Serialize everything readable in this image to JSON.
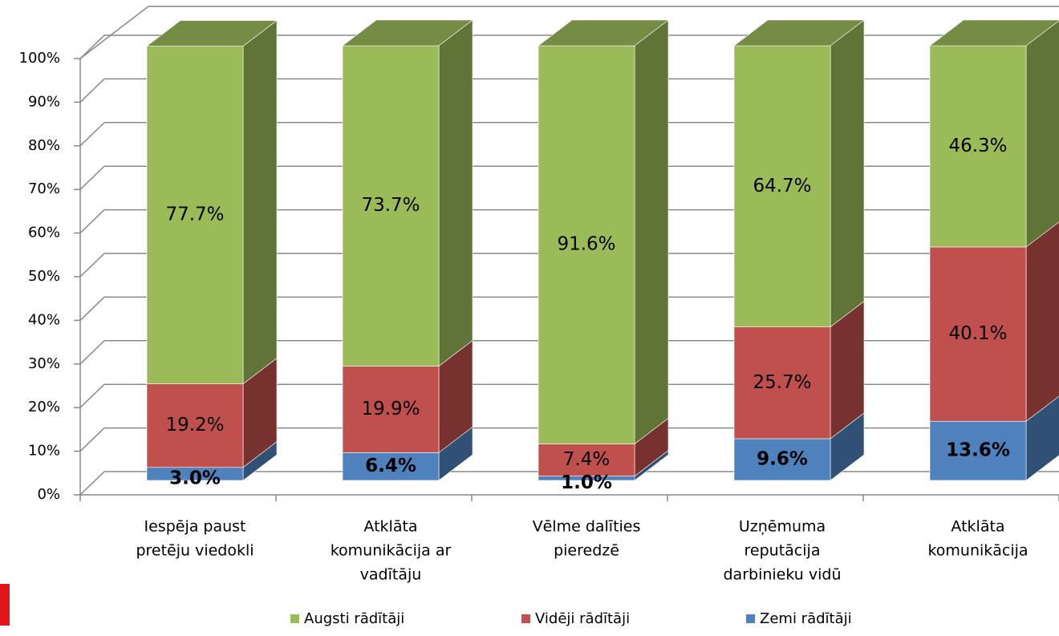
{
  "chart_data": {
    "type": "bar3d_stacked",
    "categories": [
      [
        "Iespēja paust",
        "pretēju viedokli"
      ],
      [
        "Atklāta",
        "komunikācija ar",
        "vadītāju"
      ],
      [
        "Vēlme dalīties",
        "pieredzē"
      ],
      [
        "Uzņēmuma",
        "reputācija",
        "darbinieku vidū"
      ],
      [
        "Atklāta",
        "komunikācija"
      ]
    ],
    "series": [
      {
        "name": "Zemi rādītāji",
        "color": "#4f81bd",
        "values": [
          3.0,
          6.4,
          1.0,
          9.6,
          13.6
        ],
        "value_labels": [
          "3.0%",
          "6.4%",
          "1.0%",
          "9.6%",
          "13.6%"
        ]
      },
      {
        "name": "Vidēji rādītāji",
        "color": "#c0504d",
        "values": [
          19.2,
          19.9,
          7.4,
          25.7,
          40.1
        ],
        "value_labels": [
          "19.2%",
          "19.9%",
          "7.4%",
          "25.7%",
          "40.1%"
        ]
      },
      {
        "name": "Augsti rādītāji",
        "color": "#9bbb59",
        "values": [
          77.7,
          73.7,
          91.6,
          64.7,
          46.3
        ],
        "value_labels": [
          "77.7%",
          "73.7%",
          "91.6%",
          "64.7%",
          "46.3%"
        ]
      }
    ],
    "ylim": [
      0,
      100
    ],
    "yticks": [
      {
        "value": 0,
        "label": "0%"
      },
      {
        "value": 10,
        "label": "10%"
      },
      {
        "value": 20,
        "label": "20%"
      },
      {
        "value": 30,
        "label": "30%"
      },
      {
        "value": 40,
        "label": "40%"
      },
      {
        "value": 50,
        "label": "50%"
      },
      {
        "value": 60,
        "label": "60%"
      },
      {
        "value": 70,
        "label": "70%"
      },
      {
        "value": 80,
        "label": "80%"
      },
      {
        "value": 90,
        "label": "90%"
      },
      {
        "value": 100,
        "label": "100%"
      }
    ],
    "grid": true,
    "legend": "bottom"
  }
}
